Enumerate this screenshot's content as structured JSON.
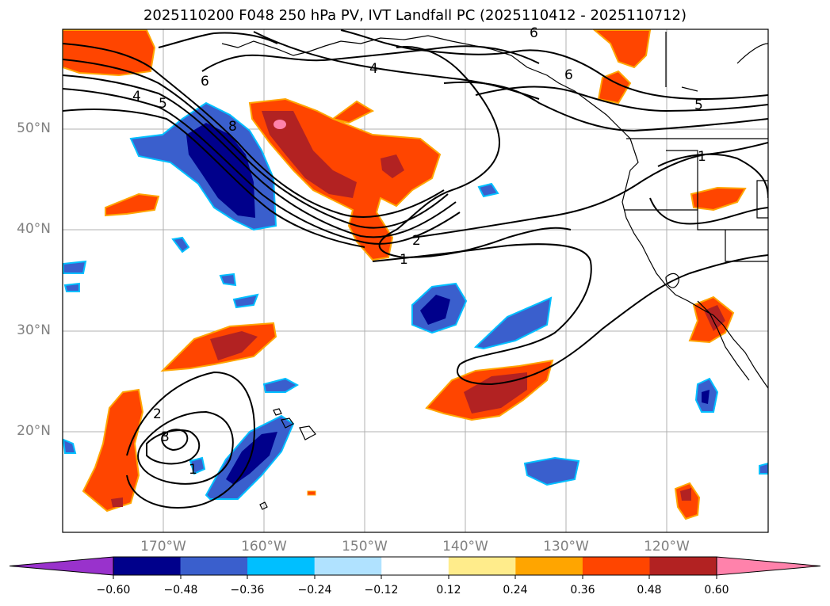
{
  "title": "2025110200 F048 250 hPa PV, IVT Landfall PC (2025110412 - 2025110712)",
  "map": {
    "lat_labels": [
      "50°N",
      "40°N",
      "30°N",
      "20°N"
    ],
    "lon_labels": [
      "170°W",
      "160°W",
      "150°W",
      "140°W",
      "130°W",
      "120°W"
    ],
    "contour_labels": [
      "4",
      "5",
      "6",
      "8",
      "4",
      "6",
      "5",
      "1",
      "2",
      "1",
      "2",
      "3",
      "1",
      "6"
    ],
    "colors": {
      "frame": "#000000",
      "grid": "#b0b0b0",
      "coast": "#000000",
      "contour": "#000000"
    }
  },
  "colorbar": {
    "ticks": [
      "−0.60",
      "−0.48",
      "−0.36",
      "−0.24",
      "−0.12",
      "0.12",
      "0.24",
      "0.36",
      "0.48",
      "0.60"
    ],
    "colors": [
      "#9932cc",
      "#00008b",
      "#3a5fcd",
      "#00bfff",
      "#b0e2ff",
      "#ffffff",
      "#ffec8b",
      "#ffa500",
      "#ff4500",
      "#b22222",
      "#ff82ab"
    ]
  }
}
